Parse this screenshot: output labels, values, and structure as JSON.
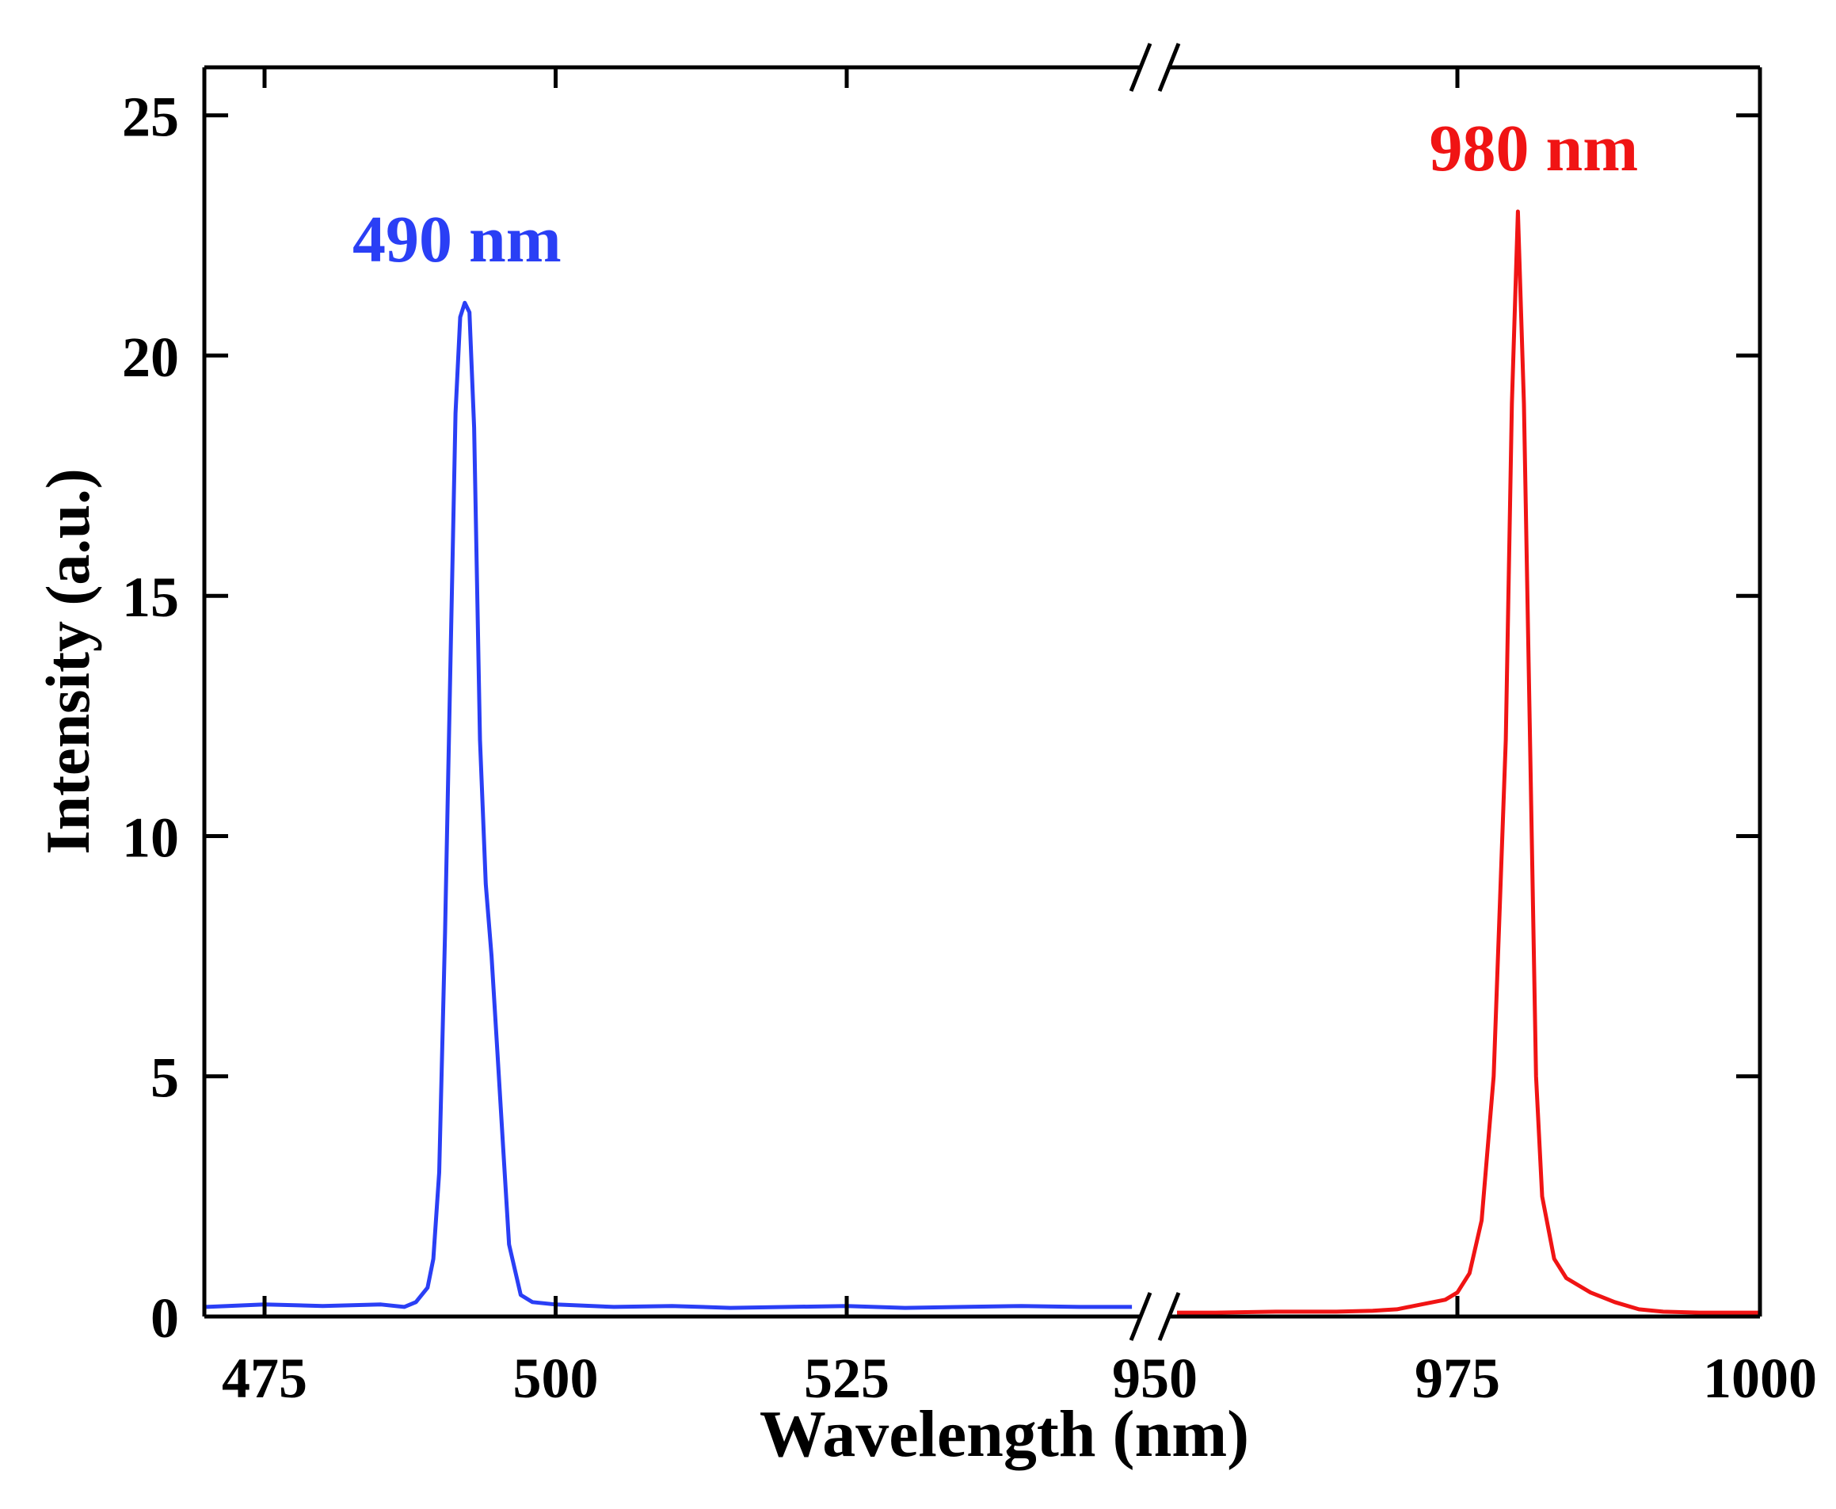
{
  "chart_data": {
    "type": "line",
    "title": "",
    "xlabel": "Wavelength (nm)",
    "ylabel": "Intensity (a.u.)",
    "x_break": true,
    "segments": [
      {
        "xlim": [
          470,
          550
        ],
        "ticks": [
          475,
          500,
          525
        ]
      },
      {
        "xlim": [
          950,
          1000
        ],
        "ticks": [
          950,
          975,
          1000
        ]
      }
    ],
    "ylim": [
      0,
      26
    ],
    "yticks": [
      0,
      5,
      10,
      15,
      20,
      25
    ],
    "grid": false,
    "series": [
      {
        "name": "490 nm",
        "color": "#2a3ff5",
        "segment": 0,
        "x": [
          470,
          475,
          480,
          485,
          487,
          488,
          489,
          489.5,
          490,
          490.5,
          491,
          491.4,
          491.8,
          492.2,
          492.6,
          493,
          493.5,
          494,
          494.5,
          495,
          495.5,
          496,
          497,
          498,
          500,
          505,
          510,
          515,
          520,
          525,
          530,
          535,
          540,
          545,
          549.5
        ],
        "y": [
          0.2,
          0.25,
          0.22,
          0.25,
          0.2,
          0.3,
          0.6,
          1.2,
          3.0,
          8.0,
          14.0,
          18.8,
          20.8,
          21.1,
          20.9,
          18.5,
          12.0,
          9.0,
          7.5,
          5.5,
          3.5,
          1.5,
          0.45,
          0.3,
          0.25,
          0.2,
          0.22,
          0.18,
          0.2,
          0.22,
          0.18,
          0.2,
          0.22,
          0.2,
          0.2
        ],
        "label": "490 nm"
      },
      {
        "name": "980 nm",
        "color": "#f01414",
        "segment": 1,
        "x": [
          950,
          955,
          960,
          965,
          968,
          970,
          972,
          974,
          975,
          976,
          977,
          978,
          979,
          979.5,
          980,
          980.5,
          981,
          981.5,
          982,
          983,
          984,
          985,
          986,
          988,
          990,
          992,
          995,
          998,
          1000
        ],
        "y": [
          0.08,
          0.08,
          0.1,
          0.1,
          0.12,
          0.15,
          0.25,
          0.35,
          0.5,
          0.9,
          2.0,
          5.0,
          12.0,
          19.0,
          23.0,
          19.0,
          12.0,
          5.0,
          2.5,
          1.2,
          0.8,
          0.65,
          0.5,
          0.3,
          0.15,
          0.1,
          0.08,
          0.08,
          0.08
        ],
        "label": "980 nm"
      }
    ]
  }
}
